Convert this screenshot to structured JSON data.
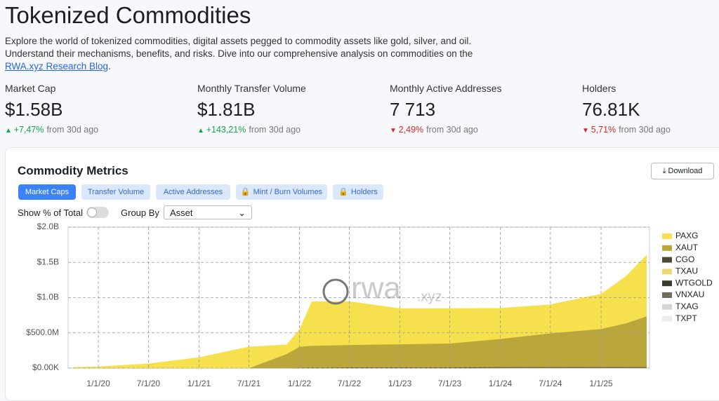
{
  "header": {
    "title": "Tokenized Commodities",
    "description": "Explore the world of tokenized commodities, digital assets pegged to commodity assets like gold, silver, and oil. Understand their mechanisms, benefits, and risks. Dive into our comprehensive analysis on commodities on the ",
    "link": "RWA.xyz Research Blog",
    "description_end": "."
  },
  "stats": [
    {
      "label": "Market Cap",
      "value": "$1.58B",
      "change": "+7,47%",
      "direction": "up",
      "suffix": "from 30d ago"
    },
    {
      "label": "Monthly Transfer Volume",
      "value": "$1.81B",
      "change": "+143,21%",
      "direction": "up",
      "suffix": "from 30d ago"
    },
    {
      "label": "Monthly Active Addresses",
      "value": "7 713",
      "change": "2,49%",
      "direction": "down",
      "suffix": "from 30d ago"
    },
    {
      "label": "Holders",
      "value": "76.81K",
      "change": "5,71%",
      "direction": "down",
      "suffix": "from 30d ago"
    }
  ],
  "panel": {
    "title": "Commodity Metrics",
    "download": "Download",
    "tabs": [
      "Market Caps",
      "Transfer Volume",
      "Active Addresses",
      "Mint / Burn Volumes",
      "Holders"
    ],
    "toggle_label": "Show % of Total",
    "group_label": "Group By",
    "group_value": "Asset"
  },
  "chart_data": {
    "type": "stacked-area",
    "watermark": {
      "main": "rwa",
      "suffix": ".xyz"
    },
    "x": [
      "10/1/19",
      "1/1/20",
      "7/1/20",
      "1/1/21",
      "7/1/21",
      "11/15/21",
      "1/1/22",
      "2/15/22",
      "7/1/22",
      "1/1/23",
      "7/1/23",
      "1/1/24",
      "7/1/24",
      "1/1/25",
      "4/1/25",
      "6/15/25"
    ],
    "xlim": [
      "9/13/19",
      "6/26/25"
    ],
    "xticks": [
      "1/1/20",
      "7/1/20",
      "1/1/21",
      "7/1/21",
      "1/1/22",
      "7/1/22",
      "1/1/23",
      "7/1/23",
      "1/1/24",
      "7/1/24",
      "1/1/25"
    ],
    "ylim": [
      0,
      2000000000
    ],
    "yticks": [
      {
        "value": 0,
        "label": "$0.00K"
      },
      {
        "value": 500000000,
        "label": "$500.0M"
      },
      {
        "value": 1000000000,
        "label": "$1.0B"
      },
      {
        "value": 1500000000,
        "label": "$1.5B"
      },
      {
        "value": 2000000000,
        "label": "$2.0B"
      }
    ],
    "grid": true,
    "series": [
      {
        "name": "PAXG",
        "color": "#f7e04e",
        "values": [
          10000000,
          20000000,
          60000000,
          150000000,
          300000000,
          130000000,
          239000000,
          626000000,
          614000000,
          504000000,
          494000000,
          434000000,
          404000000,
          494000000,
          664000000,
          864000000
        ]
      },
      {
        "name": "XAUT",
        "color": "#bba63c",
        "values": [
          0,
          0,
          0,
          0,
          0,
          200000000,
          300000000,
          310000000,
          320000000,
          330000000,
          340000000,
          400000000,
          480000000,
          540000000,
          620000000,
          720000000
        ]
      },
      {
        "name": "CGO",
        "color": "#4c4a30",
        "values": [
          0,
          0,
          0,
          0,
          0,
          0,
          5000000,
          8000000,
          10000000,
          10000000,
          10000000,
          10000000,
          10000000,
          10000000,
          10000000,
          10000000
        ]
      },
      {
        "name": "TXAU",
        "color": "#ecd774",
        "values": [
          0,
          0,
          0,
          0,
          0,
          0,
          0,
          0,
          0,
          0,
          0,
          2000000,
          2000000,
          2000000,
          2000000,
          2000000
        ]
      },
      {
        "name": "WTGOLD",
        "color": "#3b3b2c",
        "values": [
          0,
          0,
          0,
          0,
          0,
          0,
          0,
          0,
          0,
          0,
          1000000,
          1000000,
          1000000,
          1000000,
          1000000,
          1000000
        ]
      },
      {
        "name": "VNXAU",
        "color": "#6f6e5c",
        "values": [
          0,
          0,
          0,
          0,
          0,
          0,
          0,
          0,
          0,
          0,
          0,
          0,
          1000000,
          1000000,
          1000000,
          1000000
        ]
      },
      {
        "name": "TXAG",
        "color": "#d6d6d6",
        "values": [
          0,
          0,
          0,
          0,
          0,
          0,
          0,
          0,
          0,
          0,
          0,
          1000000,
          1000000,
          1000000,
          1000000,
          1000000
        ]
      },
      {
        "name": "TXPT",
        "color": "#ececec",
        "values": [
          0,
          0,
          0,
          0,
          0,
          0,
          0,
          0,
          0,
          0,
          0,
          1000000,
          1000000,
          1000000,
          1000000,
          1000000
        ]
      }
    ]
  }
}
